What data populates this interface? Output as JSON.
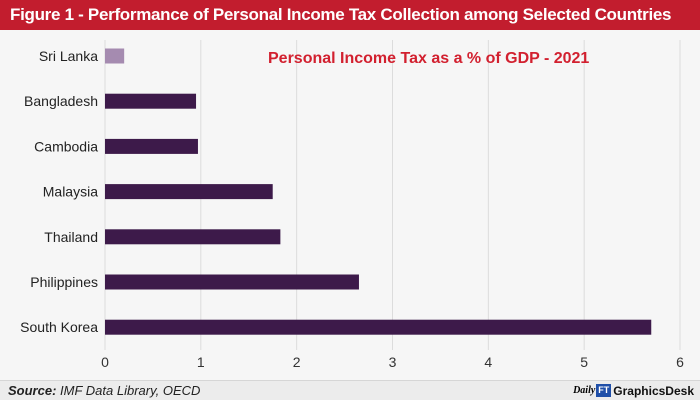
{
  "header": {
    "title": "Figure 1 - Performance of Personal Income Tax Collection among Selected Countries"
  },
  "footer": {
    "source_label": "Source:",
    "source_text": "IMF Data Library, OECD",
    "brand_logo_left": "Daily",
    "brand_logo_right": "FT",
    "brand_name": "GraphicsDesk"
  },
  "colors": {
    "title_bar": "#c21d2e",
    "subtitle": "#d2202f",
    "bar": "#3d1a4a",
    "bar_highlight": "#a58bb0",
    "grid": "#dcdcdc"
  },
  "chart_data": {
    "type": "bar",
    "orientation": "horizontal",
    "title": "Personal Income Tax as a % of GDP - 2021",
    "categories": [
      "Sri Lanka",
      "Bangladesh",
      "Cambodia",
      "Malaysia",
      "Thailand",
      "Philippines",
      "South Korea"
    ],
    "values": [
      0.2,
      0.95,
      0.97,
      1.75,
      1.83,
      2.65,
      5.7
    ],
    "highlight_index": 0,
    "xlim": [
      0,
      6
    ],
    "xticks": [
      "0",
      "1",
      "2",
      "3",
      "4",
      "5",
      "6"
    ],
    "grid": "vertical",
    "xlabel": "",
    "ylabel": ""
  }
}
